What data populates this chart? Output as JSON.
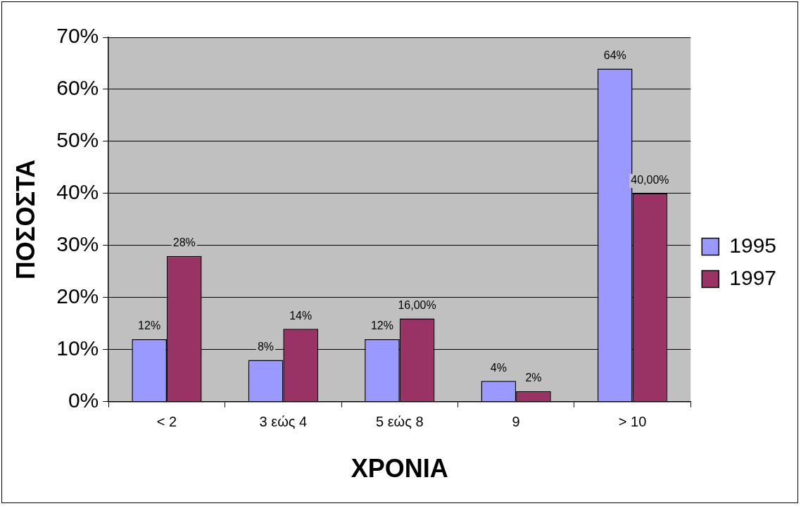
{
  "chart_data": {
    "type": "bar",
    "xlabel": "ΧΡΟΝΙΑ",
    "ylabel": "ΠΟΣΟΣΤΑ",
    "categories": [
      "< 2",
      "3 εώς 4",
      "5 εώς 8",
      "9",
      "> 10"
    ],
    "series": [
      {
        "name": "1995",
        "color": "#9999ff",
        "values": [
          12,
          8,
          12,
          4,
          64
        ],
        "value_labels": [
          "12%",
          "8%",
          "12%",
          "4%",
          "64%"
        ]
      },
      {
        "name": "1997",
        "color": "#993366",
        "values": [
          28,
          14,
          16,
          2,
          40
        ],
        "value_labels": [
          "28%",
          "14%",
          "16,00%",
          "2%",
          "40,00%"
        ]
      }
    ],
    "ylim": [
      0,
      70
    ],
    "yticks": [
      {
        "value": 0,
        "label": "0%"
      },
      {
        "value": 10,
        "label": "10%"
      },
      {
        "value": 20,
        "label": "20%"
      },
      {
        "value": 30,
        "label": "30%"
      },
      {
        "value": 40,
        "label": "40%"
      },
      {
        "value": 50,
        "label": "50%"
      },
      {
        "value": 60,
        "label": "60%"
      },
      {
        "value": 70,
        "label": "70%"
      }
    ],
    "grid": "y",
    "legend": "right"
  }
}
